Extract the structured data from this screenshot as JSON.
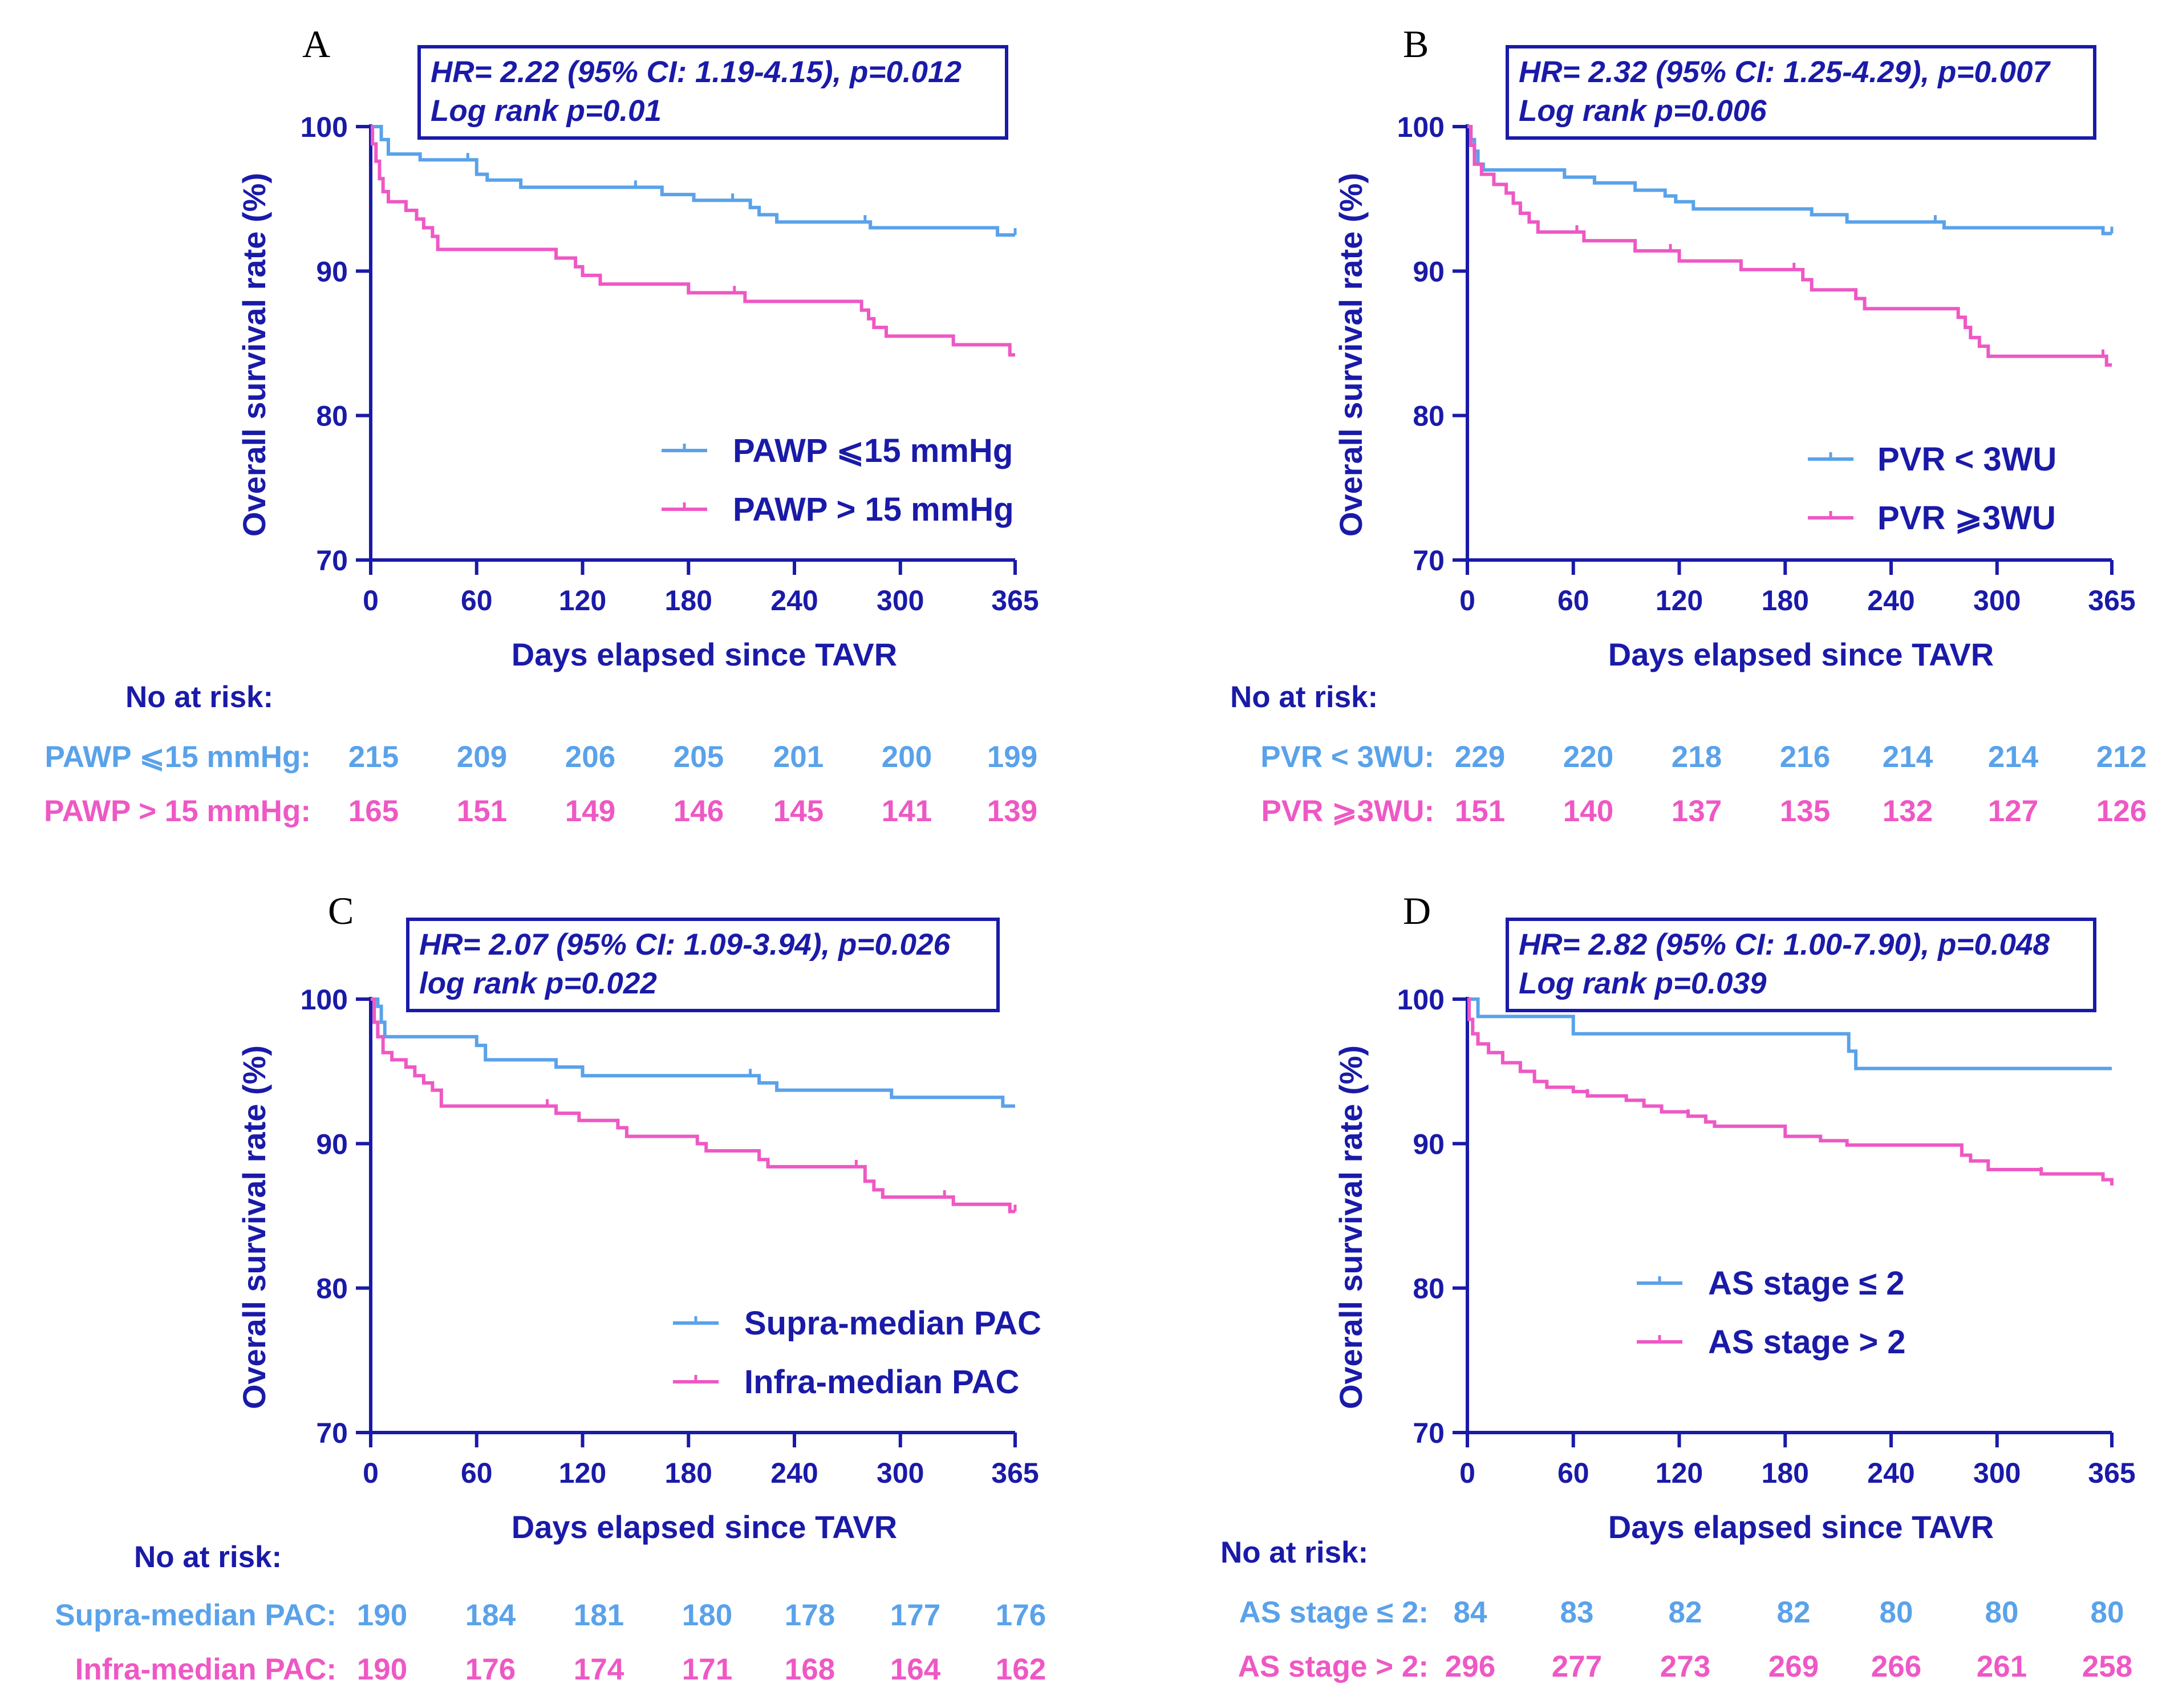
{
  "colors": {
    "axis": "#1a1aa8",
    "series1": "#5aa2ea",
    "series2": "#ee58c4",
    "letter": "#000000"
  },
  "chart_data": [
    {
      "type": "line",
      "letter": "A",
      "stats": [
        "HR= 2.22 (95% CI: 1.19-4.15), p=0.012",
        "Log rank p=0.01"
      ],
      "xlabel": "Days elapsed since TAVR",
      "ylabel": "Overall survival rate (%)",
      "xlim": [
        0,
        365
      ],
      "ylim": [
        70,
        100
      ],
      "xticks": [
        0,
        60,
        120,
        180,
        240,
        300,
        365
      ],
      "yticks": [
        70,
        80,
        90,
        100
      ],
      "series": [
        {
          "name": "PAWP ⩽15 mmHg",
          "values": [
            [
              0,
              100
            ],
            [
              4,
              100
            ],
            [
              6,
              99.1
            ],
            [
              10,
              98.1
            ],
            [
              25,
              98.1
            ],
            [
              28,
              97.7
            ],
            [
              55,
              97.7
            ],
            [
              60,
              96.7
            ],
            [
              66,
              96.3
            ],
            [
              85,
              95.8
            ],
            [
              150,
              95.8
            ],
            [
              165,
              95.3
            ],
            [
              180,
              95.3
            ],
            [
              183,
              94.9
            ],
            [
              205,
              94.9
            ],
            [
              215,
              94.4
            ],
            [
              220,
              93.9
            ],
            [
              230,
              93.4
            ],
            [
              280,
              93.4
            ],
            [
              283,
              93.0
            ],
            [
              350,
              93.0
            ],
            [
              355,
              92.5
            ],
            [
              365,
              92.5
            ]
          ]
        },
        {
          "name": "PAWP > 15 mmHg",
          "values": [
            [
              0,
              100
            ],
            [
              1,
              98.8
            ],
            [
              3,
              97.6
            ],
            [
              5,
              96.4
            ],
            [
              7,
              95.5
            ],
            [
              10,
              94.8
            ],
            [
              20,
              94.2
            ],
            [
              26,
              93.6
            ],
            [
              30,
              93.0
            ],
            [
              35,
              92.4
            ],
            [
              38,
              91.5
            ],
            [
              98,
              91.5
            ],
            [
              105,
              90.9
            ],
            [
              116,
              90.3
            ],
            [
              120,
              89.7
            ],
            [
              130,
              89.1
            ],
            [
              168,
              89.1
            ],
            [
              180,
              88.5
            ],
            [
              206,
              88.5
            ],
            [
              212,
              87.9
            ],
            [
              272,
              87.9
            ],
            [
              278,
              87.3
            ],
            [
              282,
              86.7
            ],
            [
              285,
              86.1
            ],
            [
              292,
              85.5
            ],
            [
              325,
              85.5
            ],
            [
              330,
              84.9
            ],
            [
              360,
              84.9
            ],
            [
              362,
              84.2
            ],
            [
              365,
              84.2
            ]
          ]
        }
      ],
      "risk_title": "No at risk:",
      "risk": [
        {
          "label": "PAWP ⩽15 mmHg:",
          "values": [
            "215",
            "209",
            "206",
            "205",
            "201",
            "200",
            "199"
          ]
        },
        {
          "label": "PAWP > 15 mmHg:",
          "values": [
            "165",
            "151",
            "149",
            "146",
            "145",
            "141",
            "139"
          ]
        }
      ]
    },
    {
      "type": "line",
      "letter": "B",
      "stats": [
        "HR= 2.32 (95% CI: 1.25-4.29), p=0.007",
        "Log rank p=0.006"
      ],
      "xlabel": "Days elapsed since TAVR",
      "ylabel": "Overall survival rate (%)",
      "xlim": [
        0,
        365
      ],
      "ylim": [
        70,
        100
      ],
      "xticks": [
        0,
        60,
        120,
        180,
        240,
        300,
        365
      ],
      "yticks": [
        70,
        80,
        90,
        100
      ],
      "series": [
        {
          "name": "PVR < 3WU",
          "values": [
            [
              0,
              100
            ],
            [
              2,
              99.1
            ],
            [
              4,
              98.3
            ],
            [
              6,
              97.4
            ],
            [
              9,
              97.0
            ],
            [
              50,
              97.0
            ],
            [
              55,
              96.5
            ],
            [
              70,
              96.5
            ],
            [
              72,
              96.1
            ],
            [
              90,
              96.1
            ],
            [
              95,
              95.6
            ],
            [
              108,
              95.6
            ],
            [
              112,
              95.2
            ],
            [
              118,
              94.8
            ],
            [
              128,
              94.3
            ],
            [
              190,
              94.3
            ],
            [
              195,
              93.9
            ],
            [
              215,
              93.4
            ],
            [
              265,
              93.4
            ],
            [
              270,
              93.0
            ],
            [
              355,
              93.0
            ],
            [
              360,
              92.6
            ],
            [
              365,
              92.6
            ]
          ]
        },
        {
          "name": "PVR ⩾3WU",
          "values": [
            [
              0,
              100
            ],
            [
              2,
              98.7
            ],
            [
              4,
              97.4
            ],
            [
              8,
              96.7
            ],
            [
              15,
              96.0
            ],
            [
              22,
              95.4
            ],
            [
              26,
              94.7
            ],
            [
              30,
              94.0
            ],
            [
              35,
              93.4
            ],
            [
              40,
              92.7
            ],
            [
              62,
              92.7
            ],
            [
              66,
              92.1
            ],
            [
              90,
              92.1
            ],
            [
              95,
              91.4
            ],
            [
              115,
              91.4
            ],
            [
              120,
              90.7
            ],
            [
              150,
              90.7
            ],
            [
              155,
              90.1
            ],
            [
              185,
              90.1
            ],
            [
              190,
              89.4
            ],
            [
              195,
              88.7
            ],
            [
              215,
              88.7
            ],
            [
              220,
              88.1
            ],
            [
              225,
              87.4
            ],
            [
              275,
              87.4
            ],
            [
              278,
              86.8
            ],
            [
              282,
              86.1
            ],
            [
              285,
              85.4
            ],
            [
              290,
              84.8
            ],
            [
              295,
              84.1
            ],
            [
              360,
              84.1
            ],
            [
              362,
              83.5
            ],
            [
              365,
              83.5
            ]
          ]
        }
      ],
      "risk_title": "No at risk:",
      "risk": [
        {
          "label": "PVR < 3WU:",
          "values": [
            "229",
            "220",
            "218",
            "216",
            "214",
            "214",
            "212"
          ]
        },
        {
          "label": "PVR ⩾3WU:",
          "values": [
            "151",
            "140",
            "137",
            "135",
            "132",
            "127",
            "126"
          ]
        }
      ]
    },
    {
      "type": "line",
      "letter": "C",
      "stats": [
        "HR= 2.07 (95% CI: 1.09-3.94), p=0.026",
        "log rank p=0.022"
      ],
      "xlabel": "Days elapsed since TAVR",
      "ylabel": "Overall survival rate (%)",
      "xlim": [
        0,
        365
      ],
      "ylim": [
        70,
        100
      ],
      "xticks": [
        0,
        60,
        120,
        180,
        240,
        300,
        365
      ],
      "yticks": [
        70,
        80,
        90,
        100
      ],
      "series": [
        {
          "name": "Supra-median PAC",
          "values": [
            [
              0,
              100
            ],
            [
              4,
              99.5
            ],
            [
              6,
              98.4
            ],
            [
              8,
              97.4
            ],
            [
              55,
              97.4
            ],
            [
              60,
              96.8
            ],
            [
              65,
              95.8
            ],
            [
              100,
              95.8
            ],
            [
              105,
              95.3
            ],
            [
              120,
              94.7
            ],
            [
              215,
              94.7
            ],
            [
              220,
              94.2
            ],
            [
              230,
              93.7
            ],
            [
              290,
              93.7
            ],
            [
              295,
              93.2
            ],
            [
              355,
              93.2
            ],
            [
              358,
              92.6
            ],
            [
              365,
              92.6
            ]
          ]
        },
        {
          "name": "Infra-median PAC",
          "values": [
            [
              0,
              100
            ],
            [
              2,
              98.4
            ],
            [
              4,
              97.4
            ],
            [
              7,
              96.3
            ],
            [
              12,
              95.8
            ],
            [
              20,
              95.3
            ],
            [
              25,
              94.7
            ],
            [
              30,
              94.2
            ],
            [
              35,
              93.7
            ],
            [
              40,
              92.6
            ],
            [
              100,
              92.6
            ],
            [
              105,
              92.1
            ],
            [
              118,
              91.6
            ],
            [
              135,
              91.6
            ],
            [
              140,
              91.1
            ],
            [
              145,
              90.5
            ],
            [
              180,
              90.5
            ],
            [
              185,
              90.0
            ],
            [
              190,
              89.5
            ],
            [
              215,
              89.5
            ],
            [
              220,
              88.9
            ],
            [
              225,
              88.4
            ],
            [
              275,
              88.4
            ],
            [
              280,
              87.4
            ],
            [
              285,
              86.8
            ],
            [
              290,
              86.3
            ],
            [
              325,
              86.3
            ],
            [
              330,
              85.8
            ],
            [
              360,
              85.8
            ],
            [
              362,
              85.3
            ],
            [
              365,
              85.3
            ]
          ]
        }
      ],
      "risk_title": "No at risk:",
      "risk": [
        {
          "label": "Supra-median PAC:",
          "values": [
            "190",
            "184",
            "181",
            "180",
            "178",
            "177",
            "176"
          ]
        },
        {
          "label": "Infra-median PAC:",
          "values": [
            "190",
            "176",
            "174",
            "171",
            "168",
            "164",
            "162"
          ]
        }
      ]
    },
    {
      "type": "line",
      "letter": "D",
      "stats": [
        "HR= 2.82 (95% CI: 1.00-7.90), p=0.048",
        "Log rank p=0.039"
      ],
      "xlabel": "Days elapsed since TAVR",
      "ylabel": "Overall survival rate (%)",
      "xlim": [
        0,
        365
      ],
      "ylim": [
        70,
        100
      ],
      "xticks": [
        0,
        60,
        120,
        180,
        240,
        300,
        365
      ],
      "yticks": [
        70,
        80,
        90,
        100
      ],
      "series": [
        {
          "name": "AS stage ≤ 2",
          "values": [
            [
              0,
              100
            ],
            [
              6,
              100
            ],
            [
              6,
              98.8
            ],
            [
              60,
              98.8
            ],
            [
              60,
              97.6
            ],
            [
              212,
              97.6
            ],
            [
              216,
              96.4
            ],
            [
              220,
              95.2
            ],
            [
              365,
              95.2
            ]
          ]
        },
        {
          "name": "AS stage > 2",
          "values": [
            [
              0,
              100
            ],
            [
              1,
              98.6
            ],
            [
              3,
              97.6
            ],
            [
              6,
              96.9
            ],
            [
              12,
              96.3
            ],
            [
              20,
              95.6
            ],
            [
              30,
              95.0
            ],
            [
              38,
              94.3
            ],
            [
              45,
              93.9
            ],
            [
              60,
              93.6
            ],
            [
              68,
              93.3
            ],
            [
              90,
              93.0
            ],
            [
              100,
              92.6
            ],
            [
              110,
              92.2
            ],
            [
              125,
              91.9
            ],
            [
              135,
              91.5
            ],
            [
              140,
              91.2
            ],
            [
              170,
              91.2
            ],
            [
              180,
              90.5
            ],
            [
              200,
              90.2
            ],
            [
              215,
              89.9
            ],
            [
              275,
              89.9
            ],
            [
              280,
              89.2
            ],
            [
              285,
              88.8
            ],
            [
              295,
              88.2
            ],
            [
              320,
              88.2
            ],
            [
              325,
              87.9
            ],
            [
              350,
              87.9
            ],
            [
              360,
              87.5
            ],
            [
              365,
              87.1
            ]
          ]
        }
      ],
      "risk_title": "No at risk:",
      "risk": [
        {
          "label": "AS stage ≤ 2:",
          "values": [
            "84",
            "83",
            "82",
            "82",
            "80",
            "80",
            "80"
          ]
        },
        {
          "label": "AS stage > 2:",
          "values": [
            "296",
            "277",
            "273",
            "269",
            "266",
            "261",
            "258"
          ]
        }
      ]
    }
  ]
}
